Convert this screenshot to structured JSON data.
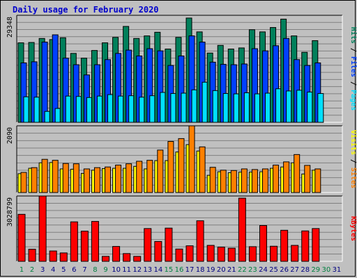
{
  "title": "Daily usage for February 2020",
  "colors": {
    "hits": "#00805b",
    "files": "#0040ff",
    "pages": "#00e0ff",
    "visits": "#ffff00",
    "sites": "#ff8000",
    "kbytes": "#ff0000",
    "weekend": "#008040",
    "weekday": "#000080"
  },
  "chart_data": [
    {
      "type": "bar",
      "name": "hits-files-pages",
      "ymax_label": "29348",
      "ymax": 29348,
      "legend": [
        {
          "key": "pages",
          "label": "Pages"
        },
        {
          "key": "files",
          "label": "Files"
        },
        {
          "key": "hits",
          "label": "Hits"
        }
      ],
      "series": [
        {
          "name": "Hits",
          "values": [
            21800,
            21900,
            23000,
            22700,
            23200,
            18900,
            17600,
            19700,
            21800,
            23300,
            26300,
            23000,
            23700,
            24700,
            20100,
            23300,
            28600,
            24800,
            19000,
            21100,
            20100,
            20400,
            25400,
            24800,
            26000,
            28300,
            23700,
            19200,
            22400
          ]
        },
        {
          "name": "Files",
          "values": [
            16300,
            16600,
            22000,
            24000,
            17600,
            15800,
            13000,
            15800,
            17200,
            18900,
            19800,
            18200,
            20200,
            19600,
            15600,
            18200,
            23700,
            22000,
            16500,
            15900,
            15800,
            16000,
            20200,
            19600,
            21000,
            23000,
            17200,
            15600,
            16300
          ]
        },
        {
          "name": "Pages",
          "values": [
            7000,
            6900,
            3000,
            3800,
            7200,
            7100,
            6800,
            7200,
            7600,
            7200,
            7300,
            6900,
            7300,
            8200,
            7900,
            8000,
            8900,
            11000,
            8700,
            7900,
            7800,
            8100,
            7800,
            8000,
            9200,
            8600,
            8800,
            8300,
            7900
          ]
        }
      ]
    },
    {
      "type": "bar",
      "name": "visits-sites",
      "ymax_label": "2090",
      "ymax": 2090,
      "legend": [
        {
          "key": "sites",
          "label": "Sites"
        },
        {
          "key": "visits",
          "label": "Visits"
        }
      ],
      "series": [
        {
          "name": "Visits",
          "values": [
            590,
            760,
            930,
            940,
            740,
            730,
            600,
            700,
            750,
            760,
            760,
            820,
            740,
            1000,
            1000,
            1270,
            1500,
            1300,
            540,
            650,
            620,
            640,
            640,
            650,
            760,
            800,
            930,
            580,
            700
          ]
        },
        {
          "name": "Sites",
          "values": [
            630,
            780,
            1040,
            1010,
            910,
            900,
            740,
            780,
            800,
            860,
            900,
            980,
            1010,
            1330,
            1600,
            1690,
            2090,
            1430,
            790,
            700,
            690,
            740,
            720,
            740,
            860,
            960,
            1190,
            850,
            740
          ]
        }
      ]
    },
    {
      "type": "bar",
      "name": "kbytes",
      "ymax_label": "3028799",
      "ymax": 3028799,
      "legend": [
        {
          "key": "kbytes",
          "label": "KBytes"
        }
      ],
      "series": [
        {
          "name": "KBytes",
          "values": [
            2180000,
            560000,
            3028799,
            480000,
            390000,
            1830000,
            1400000,
            1850000,
            230000,
            690000,
            360000,
            230000,
            1520000,
            920000,
            1540000,
            570000,
            720000,
            1880000,
            740000,
            660000,
            610000,
            2930000,
            680000,
            1660000,
            700000,
            1440000,
            740000,
            1410000,
            1520000
          ]
        }
      ]
    }
  ],
  "x_labels": [
    "1",
    "2",
    "3",
    "4",
    "5",
    "6",
    "7",
    "8",
    "9",
    "10",
    "11",
    "12",
    "13",
    "14",
    "15",
    "16",
    "17",
    "18",
    "19",
    "20",
    "21",
    "22",
    "23",
    "24",
    "25",
    "26",
    "27",
    "28",
    "29",
    "30",
    "31"
  ],
  "weekend_days": [
    1,
    2,
    8,
    9,
    15,
    16,
    22,
    23,
    29,
    30
  ]
}
